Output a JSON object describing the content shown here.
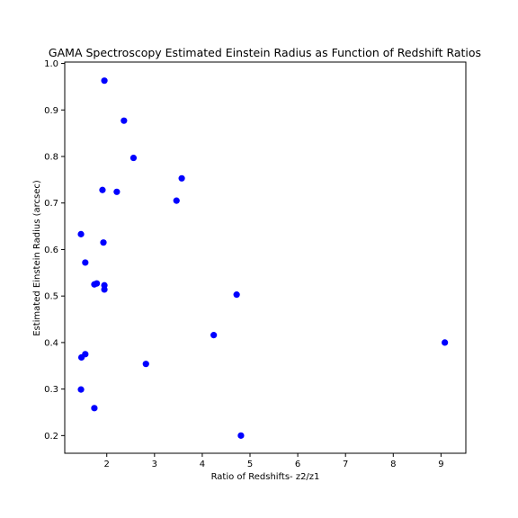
{
  "chart_data": {
    "type": "scatter",
    "title": "GAMA Spectroscopy Estimated Einstein Radius as Function of Redshift Ratios",
    "xlabel": "Ratio of Redshifts- z2/z1",
    "ylabel": "Estimated Einstein Radius (arcsec)",
    "xlim": [
      1.12,
      9.52
    ],
    "ylim": [
      0.162,
      1.003
    ],
    "xticks": [
      2,
      3,
      4,
      5,
      6,
      7,
      8,
      9
    ],
    "yticks": [
      0.2,
      0.3,
      0.4,
      0.5,
      0.6,
      0.7,
      0.8,
      0.9,
      1.0
    ],
    "xtick_labels": [
      "2",
      "3",
      "4",
      "5",
      "6",
      "7",
      "8",
      "9"
    ],
    "ytick_labels": [
      "0.2",
      "0.3",
      "0.4",
      "0.5",
      "0.6",
      "0.7",
      "0.8",
      "0.9",
      "1.0"
    ],
    "grid": false,
    "marker_color": "#0000ff",
    "points": [
      {
        "x": 1.95,
        "y": 0.963
      },
      {
        "x": 2.36,
        "y": 0.877
      },
      {
        "x": 2.56,
        "y": 0.797
      },
      {
        "x": 3.57,
        "y": 0.753
      },
      {
        "x": 1.91,
        "y": 0.728
      },
      {
        "x": 2.21,
        "y": 0.724
      },
      {
        "x": 3.46,
        "y": 0.705
      },
      {
        "x": 1.46,
        "y": 0.633
      },
      {
        "x": 1.93,
        "y": 0.615
      },
      {
        "x": 1.55,
        "y": 0.572
      },
      {
        "x": 1.79,
        "y": 0.527
      },
      {
        "x": 1.74,
        "y": 0.525
      },
      {
        "x": 1.95,
        "y": 0.523
      },
      {
        "x": 1.95,
        "y": 0.514
      },
      {
        "x": 4.72,
        "y": 0.503
      },
      {
        "x": 4.24,
        "y": 0.416
      },
      {
        "x": 9.08,
        "y": 0.4
      },
      {
        "x": 1.55,
        "y": 0.375
      },
      {
        "x": 1.47,
        "y": 0.368
      },
      {
        "x": 2.82,
        "y": 0.354
      },
      {
        "x": 1.46,
        "y": 0.299
      },
      {
        "x": 1.74,
        "y": 0.259
      },
      {
        "x": 4.81,
        "y": 0.2
      }
    ]
  }
}
